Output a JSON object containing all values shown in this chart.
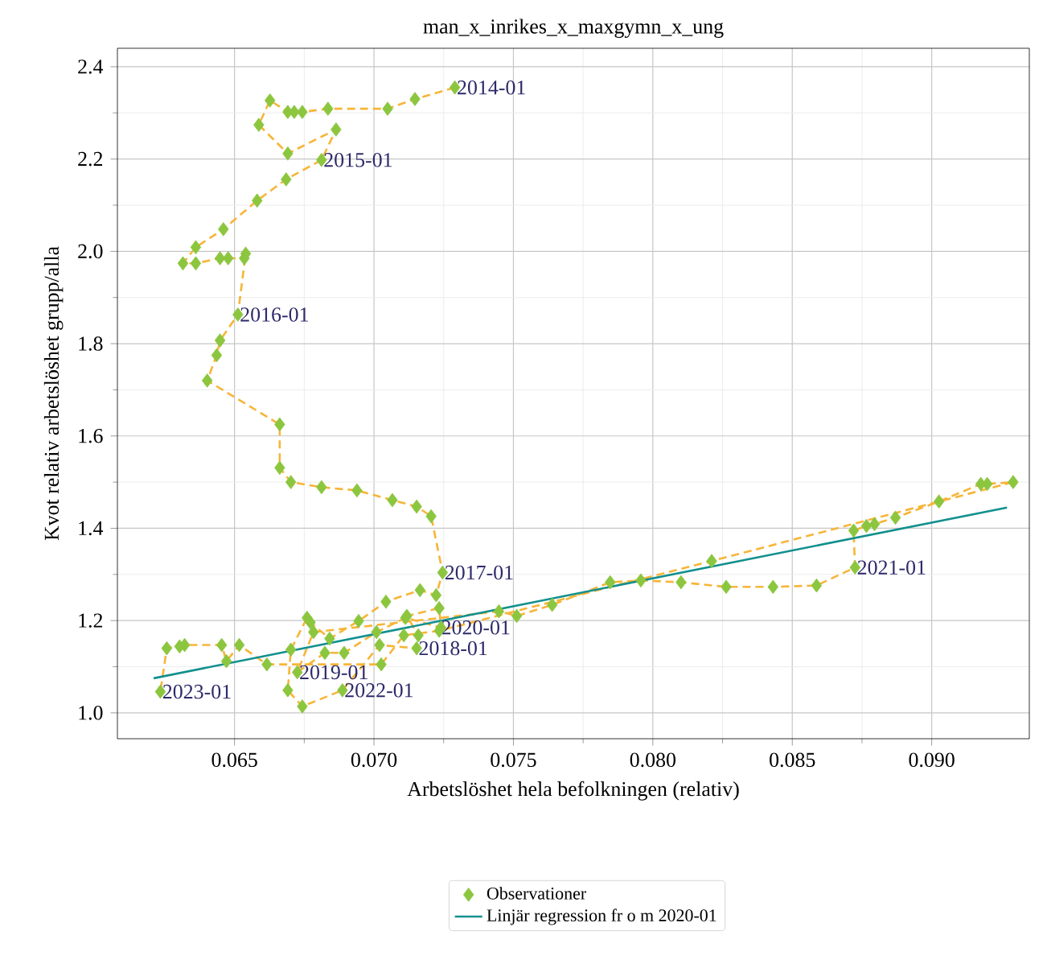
{
  "chart_data": {
    "type": "scatter",
    "title": "man_x_inrikes_x_maxgymn_x_ung",
    "xlabel": "Arbetslöshet hela befolkningen (relativ)",
    "ylabel": "Kvot relativ arbetslöshet grupp/alla",
    "xlim": [
      0.0608,
      0.0935
    ],
    "ylim": [
      0.944,
      2.44
    ],
    "xticks": [
      {
        "value": 0.065,
        "label": "0.065"
      },
      {
        "value": 0.07,
        "label": "0.070"
      },
      {
        "value": 0.075,
        "label": "0.075"
      },
      {
        "value": 0.08,
        "label": "0.080"
      },
      {
        "value": 0.085,
        "label": "0.085"
      },
      {
        "value": 0.09,
        "label": "0.090"
      }
    ],
    "yticks": [
      {
        "value": 1.0,
        "label": "1.0"
      },
      {
        "value": 1.2,
        "label": "1.2"
      },
      {
        "value": 1.4,
        "label": "1.4"
      },
      {
        "value": 1.6,
        "label": "1.6"
      },
      {
        "value": 1.8,
        "label": "1.8"
      },
      {
        "value": 2.0,
        "label": "2.0"
      },
      {
        "value": 2.2,
        "label": "2.2"
      },
      {
        "value": 2.4,
        "label": "2.4"
      }
    ],
    "grid": true,
    "legend": "bottom",
    "series": [
      {
        "type": "line",
        "line_style": "dashed",
        "marker": "none",
        "color": "#f7b538",
        "x": [
          0.0729,
          0.07147,
          0.07049,
          0.06835,
          0.06743,
          0.06714,
          0.06691,
          0.06627,
          0.06587,
          0.06691,
          0.06864,
          0.06812,
          0.06685,
          0.06581,
          0.0646,
          0.06361,
          0.06315,
          0.06361,
          0.06448,
          0.06477,
          0.06535,
          0.0654,
          0.06512,
          0.06448,
          0.06436,
          0.06402,
          0.06662,
          0.06662,
          0.06702,
          0.06812,
          0.06939,
          0.07066,
          0.07153,
          0.07205,
          0.07246,
          0.07223,
          0.07165,
          0.07043,
          0.06945,
          0.06841,
          0.06772,
          0.0676,
          0.06702,
          0.06691,
          0.06743,
          0.06887,
          0.0702,
          0.07153,
          0.07159,
          0.07118,
          0.07234,
          0.0724,
          0.07113,
          0.07009,
          0.06893,
          0.06824,
          0.06725,
          0.06783,
          0.07448,
          0.07512,
          0.07639,
          0.07847,
          0.07957,
          0.08101,
          0.08263,
          0.08431,
          0.08587,
          0.08725,
          0.0872,
          0.08766,
          0.08795,
          0.0887,
          0.09026,
          0.09176,
          0.09199,
          0.09292,
          0.08211,
          0.07234,
          0.07107,
          0.07026,
          0.06616,
          0.06517,
          0.06471,
          0.06454,
          0.06321,
          0.06303,
          0.06257,
          0.06234
        ],
        "values": [
          2.355,
          2.33,
          2.309,
          2.309,
          2.302,
          2.302,
          2.302,
          2.327,
          2.274,
          2.212,
          2.264,
          2.198,
          2.156,
          2.11,
          2.048,
          2.009,
          1.974,
          1.974,
          1.985,
          1.985,
          1.985,
          1.995,
          1.863,
          1.807,
          1.775,
          1.72,
          1.625,
          1.531,
          1.5,
          1.489,
          1.482,
          1.461,
          1.447,
          1.426,
          1.304,
          1.255,
          1.266,
          1.241,
          1.199,
          1.161,
          1.196,
          1.206,
          1.137,
          1.049,
          1.014,
          1.049,
          1.147,
          1.14,
          1.168,
          1.21,
          1.227,
          1.185,
          1.206,
          1.175,
          1.13,
          1.13,
          1.088,
          1.175,
          1.22,
          1.21,
          1.234,
          1.283,
          1.287,
          1.283,
          1.273,
          1.273,
          1.276,
          1.315,
          1.395,
          1.405,
          1.409,
          1.423,
          1.458,
          1.496,
          1.496,
          1.5,
          1.329,
          1.178,
          1.168,
          1.105,
          1.105,
          1.147,
          1.112,
          1.147,
          1.147,
          1.144,
          1.14,
          1.046
        ]
      },
      {
        "name": "Observationer",
        "marker": "diamond",
        "color": "#8cc63f",
        "x": [
          0.0729,
          0.07147,
          0.07049,
          0.06835,
          0.06743,
          0.06714,
          0.06691,
          0.06627,
          0.06587,
          0.06691,
          0.06864,
          0.06812,
          0.06685,
          0.06581,
          0.0646,
          0.06361,
          0.06315,
          0.06361,
          0.06448,
          0.06477,
          0.06535,
          0.0654,
          0.06512,
          0.06448,
          0.06436,
          0.06402,
          0.06662,
          0.06662,
          0.06702,
          0.06812,
          0.06939,
          0.07066,
          0.07153,
          0.07205,
          0.07246,
          0.07223,
          0.07165,
          0.07043,
          0.06945,
          0.06841,
          0.06772,
          0.0676,
          0.06702,
          0.06691,
          0.06743,
          0.06887,
          0.0702,
          0.07153,
          0.07159,
          0.07118,
          0.07234,
          0.0724,
          0.07113,
          0.07009,
          0.06893,
          0.06824,
          0.06725,
          0.06783,
          0.07448,
          0.07512,
          0.07639,
          0.07847,
          0.07957,
          0.08101,
          0.08263,
          0.08431,
          0.08587,
          0.08725,
          0.0872,
          0.08766,
          0.08795,
          0.0887,
          0.09026,
          0.09176,
          0.09199,
          0.09292,
          0.08211,
          0.07234,
          0.07107,
          0.07026,
          0.06616,
          0.06517,
          0.06471,
          0.06454,
          0.06321,
          0.06303,
          0.06257,
          0.06234
        ],
        "values": [
          2.355,
          2.33,
          2.309,
          2.309,
          2.302,
          2.302,
          2.302,
          2.327,
          2.274,
          2.212,
          2.264,
          2.198,
          2.156,
          2.11,
          2.048,
          2.009,
          1.974,
          1.974,
          1.985,
          1.985,
          1.985,
          1.995,
          1.863,
          1.807,
          1.775,
          1.72,
          1.625,
          1.531,
          1.5,
          1.489,
          1.482,
          1.461,
          1.447,
          1.426,
          1.304,
          1.255,
          1.266,
          1.241,
          1.199,
          1.161,
          1.196,
          1.206,
          1.137,
          1.049,
          1.014,
          1.049,
          1.147,
          1.14,
          1.168,
          1.21,
          1.227,
          1.185,
          1.206,
          1.175,
          1.13,
          1.13,
          1.088,
          1.175,
          1.22,
          1.21,
          1.234,
          1.283,
          1.287,
          1.283,
          1.273,
          1.273,
          1.276,
          1.315,
          1.395,
          1.405,
          1.409,
          1.423,
          1.458,
          1.496,
          1.496,
          1.5,
          1.329,
          1.178,
          1.168,
          1.105,
          1.105,
          1.147,
          1.112,
          1.147,
          1.147,
          1.144,
          1.14,
          1.046
        ]
      },
      {
        "name": "Linjär regression fr o m 2020-01",
        "type": "line",
        "line_style": "solid",
        "marker": "none",
        "color": "#12908e",
        "x": [
          0.0621,
          0.0927
        ],
        "values": [
          1.075,
          1.445
        ]
      }
    ],
    "annotations": [
      {
        "text": "2014-01",
        "x": 0.0729,
        "y": 2.355
      },
      {
        "text": "2015-01",
        "x": 0.06812,
        "y": 2.198
      },
      {
        "text": "2016-01",
        "x": 0.06512,
        "y": 1.863
      },
      {
        "text": "2017-01",
        "x": 0.07246,
        "y": 1.304
      },
      {
        "text": "2018-01",
        "x": 0.07153,
        "y": 1.14
      },
      {
        "text": "2019-01",
        "x": 0.06725,
        "y": 1.088
      },
      {
        "text": "2020-01",
        "x": 0.07234,
        "y": 1.185
      },
      {
        "text": "2021-01",
        "x": 0.08725,
        "y": 1.315
      },
      {
        "text": "2022-01",
        "x": 0.06887,
        "y": 1.049
      },
      {
        "text": "2023-01",
        "x": 0.06234,
        "y": 1.046
      }
    ]
  }
}
